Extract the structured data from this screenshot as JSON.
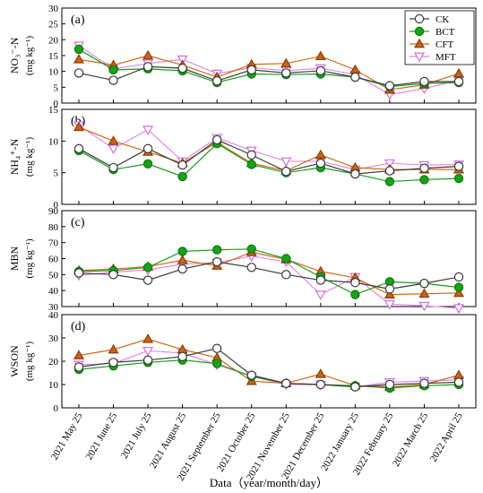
{
  "figure": {
    "x_axis_title": "Data（year/month/day）"
  },
  "chart_data": [
    {
      "type": "line",
      "panel_label": "(a)",
      "ylabel": "NO₃⁻-N",
      "yunit": "(mg kg⁻¹)",
      "ylim": [
        0,
        30
      ],
      "yticks": [
        0,
        5,
        10,
        15,
        20,
        25,
        30
      ],
      "categories": [
        "2021 May 25",
        "2021 June 25",
        "2021 July 25",
        "2021 August 25",
        "2021 September 25",
        "2021 October 25",
        "2021 November 25",
        "2021 December 25",
        "2022 January 25",
        "2022 February 25",
        "2022 March 25",
        "2022 April 25"
      ],
      "legend_position": "top-right",
      "series": [
        {
          "name": "CK",
          "values": [
            9.5,
            7.2,
            11.5,
            11.0,
            7.0,
            10.5,
            9.5,
            10.2,
            8.2,
            5.5,
            6.8,
            6.8
          ]
        },
        {
          "name": "BCT",
          "values": [
            17.0,
            10.5,
            10.8,
            10.2,
            6.5,
            9.2,
            9.0,
            9.2,
            8.2,
            5.2,
            6.2,
            6.5
          ]
        },
        {
          "name": "CFT",
          "values": [
            13.8,
            12.0,
            15.0,
            12.0,
            8.2,
            12.2,
            12.5,
            14.8,
            10.5,
            4.2,
            5.8,
            9.3
          ]
        },
        {
          "name": "MFT",
          "values": [
            18.2,
            10.8,
            12.5,
            13.8,
            9.3,
            11.2,
            10.2,
            11.0,
            9.0,
            2.7,
            4.6,
            7.2
          ]
        }
      ]
    },
    {
      "type": "line",
      "panel_label": "(b)",
      "ylabel": "NH₄⁺-N",
      "yunit": "(mg kg⁻¹)",
      "ylim": [
        0,
        15
      ],
      "yticks": [
        0,
        5,
        10,
        15
      ],
      "categories": [
        "2021 May 25",
        "2021 June 25",
        "2021 July 25",
        "2021 August 25",
        "2021 September 25",
        "2021 October 25",
        "2021 November 25",
        "2021 December 25",
        "2022 January 25",
        "2022 February 25",
        "2022 March 25",
        "2022 April 25"
      ],
      "series": [
        {
          "name": "CK",
          "values": [
            8.8,
            5.8,
            8.8,
            6.2,
            10.2,
            7.8,
            5.2,
            6.5,
            4.8,
            5.3,
            5.7,
            6.0
          ]
        },
        {
          "name": "BCT",
          "values": [
            8.5,
            5.5,
            6.4,
            4.4,
            9.6,
            6.3,
            5.0,
            5.8,
            4.8,
            3.6,
            3.9,
            4.1
          ]
        },
        {
          "name": "CFT",
          "values": [
            12.2,
            10.0,
            8.3,
            6.5,
            9.8,
            6.5,
            5.3,
            7.8,
            5.8,
            5.5,
            5.5,
            5.5
          ]
        },
        {
          "name": "MFT",
          "values": [
            12.5,
            8.8,
            11.8,
            6.8,
            10.5,
            8.5,
            6.8,
            6.8,
            5.5,
            6.5,
            6.2,
            6.3
          ]
        }
      ]
    },
    {
      "type": "line",
      "panel_label": "(c)",
      "ylabel": "MBN",
      "yunit": "(mg kg⁻¹)",
      "ylim": [
        30,
        90
      ],
      "yticks": [
        30,
        40,
        50,
        60,
        70,
        80,
        90
      ],
      "categories": [
        "2021 May 25",
        "2021 June 25",
        "2021 July 25",
        "2021 August 25",
        "2021 September 25",
        "2021 October 25",
        "2021 November 25",
        "2021 December 25",
        "2022 January 25",
        "2022 February 25",
        "2022 March 25",
        "2022 April 25"
      ],
      "series": [
        {
          "name": "CK",
          "values": [
            51,
            50,
            46.5,
            53.5,
            58,
            54.5,
            50,
            46.5,
            45,
            41,
            44.5,
            48.5
          ]
        },
        {
          "name": "BCT",
          "values": [
            52,
            52.5,
            54.5,
            64.5,
            65.5,
            66,
            60,
            48.5,
            37.5,
            45.5,
            44.5,
            42
          ]
        },
        {
          "name": "CFT",
          "values": [
            52.5,
            53.5,
            55,
            59,
            55.5,
            64,
            59.5,
            52,
            48,
            37.5,
            38,
            38.5
          ]
        },
        {
          "name": "MFT",
          "values": [
            49.5,
            51.5,
            53,
            56.5,
            57.5,
            61.5,
            58,
            37.5,
            48.5,
            31.5,
            30.5,
            29
          ]
        }
      ]
    },
    {
      "type": "line",
      "panel_label": "(d)",
      "ylabel": "WSON",
      "yunit": "(mg kg⁻¹)",
      "ylim": [
        0,
        40
      ],
      "yticks": [
        0,
        10,
        20,
        30,
        40
      ],
      "categories": [
        "2021 May 25",
        "2021 June 25",
        "2021 July 25",
        "2021 August 25",
        "2021 September 25",
        "2021 October 25",
        "2021 November 25",
        "2021 December 25",
        "2022 January 25",
        "2022 February 25",
        "2022 March 25",
        "2022 April 25"
      ],
      "series": [
        {
          "name": "CK",
          "values": [
            17.5,
            19.5,
            20.5,
            22,
            25.5,
            14,
            10.5,
            10,
            9,
            10,
            10.5,
            11
          ]
        },
        {
          "name": "BCT",
          "values": [
            16.5,
            18,
            19.5,
            20.5,
            19,
            13.5,
            10.5,
            10,
            9.5,
            8.5,
            9.5,
            10
          ]
        },
        {
          "name": "CFT",
          "values": [
            22.5,
            25,
            29.5,
            25,
            21.5,
            11.5,
            10.5,
            14.5,
            9.5,
            9,
            10,
            14
          ]
        },
        {
          "name": "MFT",
          "values": [
            18.5,
            19,
            24.5,
            23.5,
            18.5,
            13.5,
            10,
            10,
            9,
            11,
            11.5,
            12
          ]
        }
      ]
    }
  ],
  "series_styles": {
    "CK": {
      "marker": "circle",
      "line_color": "#3a3a3a",
      "marker_fill": "#ffffff",
      "marker_stroke": "#3a3a3a"
    },
    "BCT": {
      "marker": "circle",
      "line_color": "#1a9a1a",
      "marker_fill": "#1aa01a",
      "marker_stroke": "#0f7a0f"
    },
    "CFT": {
      "marker": "triangle-up",
      "line_color": "#d06a1a",
      "marker_fill": "#c8641a",
      "marker_stroke": "#8a3e08"
    },
    "MFT": {
      "marker": "triangle-down",
      "line_color": "#e08ae8",
      "marker_fill": "#ffffff",
      "marker_stroke": "#d070e0"
    }
  }
}
